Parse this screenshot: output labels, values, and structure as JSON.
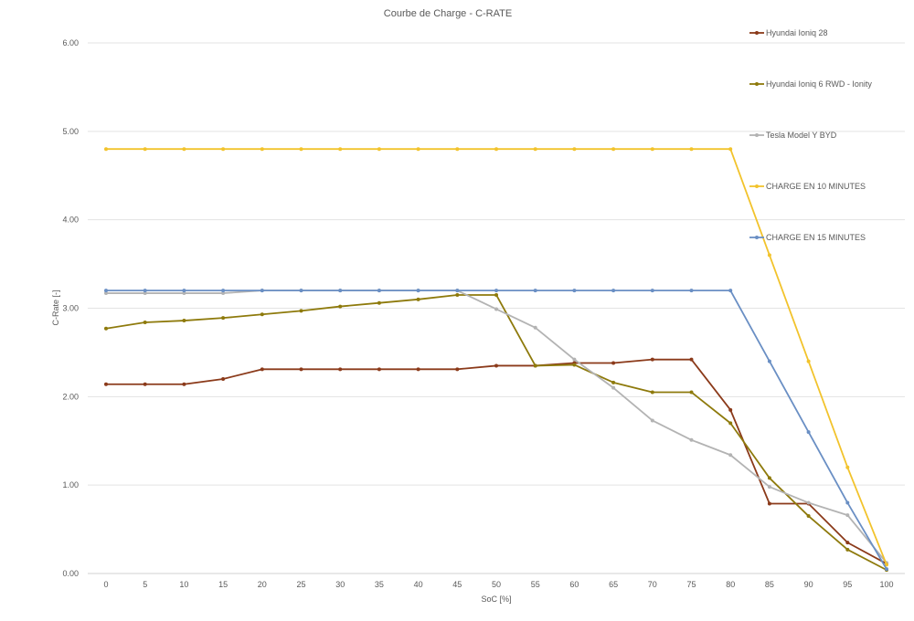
{
  "chart_data": {
    "type": "line",
    "title": "Courbe de Charge - C-RATE",
    "xlabel": "SoC [%]",
    "ylabel": "C-Rate [-]",
    "xlim": [
      0,
      100
    ],
    "ylim": [
      0,
      6
    ],
    "yticks": [
      "0.00",
      "1.00",
      "2.00",
      "3.00",
      "4.00",
      "5.00",
      "6.00"
    ],
    "x": [
      0,
      5,
      10,
      15,
      20,
      25,
      30,
      35,
      40,
      45,
      50,
      55,
      60,
      65,
      70,
      75,
      80,
      85,
      90,
      95,
      100
    ],
    "grid": true,
    "legend_position": "right",
    "series": [
      {
        "name": "Hyundai Ioniq 28",
        "color": "#8b3a1a",
        "values": [
          2.14,
          2.14,
          2.14,
          2.2,
          2.31,
          2.31,
          2.31,
          2.31,
          2.31,
          2.31,
          2.35,
          2.35,
          2.38,
          2.38,
          2.42,
          2.42,
          1.85,
          0.79,
          0.79,
          0.35,
          0.11
        ]
      },
      {
        "name": "Hyundai Ioniq 6 RWD - Ionity",
        "color": "#8e7a0c",
        "values": [
          2.77,
          2.84,
          2.86,
          2.89,
          2.93,
          2.97,
          3.02,
          3.06,
          3.1,
          3.15,
          3.15,
          2.35,
          2.36,
          2.16,
          2.05,
          2.05,
          1.7,
          1.08,
          0.65,
          0.27,
          0.04
        ]
      },
      {
        "name": "Tesla Model Y BYD",
        "color": "#b3b3b3",
        "values": [
          3.17,
          3.17,
          3.17,
          3.17,
          3.2,
          3.2,
          3.2,
          3.2,
          3.2,
          3.2,
          2.99,
          2.78,
          2.42,
          2.1,
          1.73,
          1.51,
          1.34,
          0.98,
          0.8,
          0.66,
          0.12
        ]
      },
      {
        "name": "CHARGE EN 10 MINUTES",
        "color": "#f2c32c",
        "values": [
          4.8,
          4.8,
          4.8,
          4.8,
          4.8,
          4.8,
          4.8,
          4.8,
          4.8,
          4.8,
          4.8,
          4.8,
          4.8,
          4.8,
          4.8,
          4.8,
          4.8,
          3.6,
          2.4,
          1.2,
          0.1
        ]
      },
      {
        "name": "CHARGE EN 15 MINUTES",
        "color": "#6a8fc4",
        "values": [
          3.2,
          3.2,
          3.2,
          3.2,
          3.2,
          3.2,
          3.2,
          3.2,
          3.2,
          3.2,
          3.2,
          3.2,
          3.2,
          3.2,
          3.2,
          3.2,
          3.2,
          2.4,
          1.6,
          0.8,
          0.05
        ]
      }
    ]
  }
}
